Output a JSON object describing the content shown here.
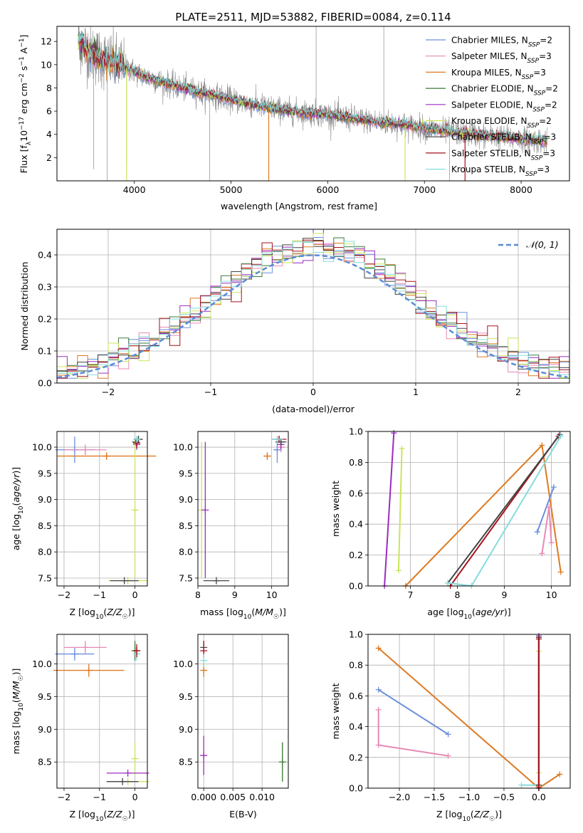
{
  "figure_title": "PLATE=2511, MJD=53882, FIBERID=0084, z=0.114",
  "colors": {
    "Chabrier MILES": "#6a8fdc",
    "Salpeter MILES": "#e889b6",
    "Kroupa MILES": "#dd7a22",
    "Chabrier ELODIE": "#3a7a3a",
    "Salpeter ELODIE": "#9b2cbf",
    "Kroupa ELODIE": "#c8e65a",
    "Chabrier STELIB": "#444444",
    "Salpeter STELIB": "#a6121e",
    "Kroupa STELIB": "#86dcdc",
    "data": "#888888",
    "normal": "#5b8bd6"
  },
  "legend_main": [
    {
      "base": "Chabrier MILES, N",
      "sub": "SSP",
      "tail": "=2",
      "series": "Chabrier MILES"
    },
    {
      "base": "Salpeter MILES, N",
      "sub": "SSP",
      "tail": "=3",
      "series": "Salpeter MILES"
    },
    {
      "base": "Kroupa MILES, N",
      "sub": "SSP",
      "tail": "=3",
      "series": "Kroupa MILES"
    },
    {
      "base": "Chabrier ELODIE, N",
      "sub": "SSP",
      "tail": "=2",
      "series": "Chabrier ELODIE"
    },
    {
      "base": "Salpeter ELODIE, N",
      "sub": "SSP",
      "tail": "=2",
      "series": "Salpeter ELODIE"
    },
    {
      "base": "Kroupa ELODIE, N",
      "sub": "SSP",
      "tail": "=2",
      "series": "Kroupa ELODIE"
    },
    {
      "base": "Chabrier STELIB, N",
      "sub": "SSP",
      "tail": "=3",
      "series": "Chabrier STELIB"
    },
    {
      "base": "Salpeter STELIB, N",
      "sub": "SSP",
      "tail": "=3",
      "series": "Salpeter STELIB"
    },
    {
      "base": "Kroupa STELIB, N",
      "sub": "SSP",
      "tail": "=3",
      "series": "Kroupa STELIB"
    }
  ],
  "chart_data": [
    {
      "id": "spectrum",
      "type": "line",
      "xlabel": "wavelength [Angstrom, rest frame]",
      "ylabel": "Flux [f_λ 10^-17 erg cm^-2 s^-1 A^-1]",
      "xlim": [
        3200,
        8500
      ],
      "ylim": [
        0,
        13.3
      ],
      "xticks": [
        4000,
        5000,
        6000,
        7000,
        8000
      ],
      "yticks": [
        2,
        4,
        6,
        8,
        10,
        12
      ],
      "continuum": {
        "x": [
          3400,
          3550,
          3700,
          3900,
          4100,
          4400,
          4800,
          5200,
          5600,
          6000,
          6400,
          6800,
          7200,
          7600,
          8000,
          8300
        ],
        "y": [
          12.2,
          11.0,
          10.4,
          9.8,
          9.0,
          8.2,
          7.4,
          6.6,
          6.0,
          5.7,
          5.2,
          4.8,
          4.3,
          3.9,
          3.6,
          3.4
        ]
      },
      "data_spikes": [
        {
          "x": 3580,
          "y": 1.0
        },
        {
          "x": 3720,
          "y": 0.0
        },
        {
          "x": 3920,
          "y": 1.5
        },
        {
          "x": 4780,
          "y": 0.0
        },
        {
          "x": 5880,
          "y": 13.3
        },
        {
          "x": 6580,
          "y": 13.3
        },
        {
          "x": 6800,
          "y": 1.8
        },
        {
          "x": 7260,
          "y": 0.0
        }
      ],
      "model_spikes": [
        {
          "series": "Kroupa MILES",
          "x": 5390,
          "y": 0.0
        },
        {
          "series": "Kroupa ELODIE",
          "x": 3920,
          "y": 0.0
        },
        {
          "series": "Salpeter STELIB",
          "x": 7420,
          "y": 0.0
        },
        {
          "series": "Kroupa ELODIE",
          "x": 6800,
          "y": 0.0
        }
      ]
    },
    {
      "id": "residuals",
      "type": "step",
      "xlabel": "(data-model)/error",
      "ylabel": "Normed distribution",
      "xlim": [
        -2.5,
        2.5
      ],
      "ylim": [
        0,
        0.48
      ],
      "xticks": [
        -2,
        -1,
        0,
        1,
        2
      ],
      "yticks": [
        0.0,
        0.1,
        0.2,
        0.3,
        0.4
      ],
      "bin_width": 0.1,
      "normal_curve_label": "𝒩(0, 1)"
    },
    {
      "id": "age_vs_Z",
      "type": "errorbar",
      "xlabel": "Z [log10(Z/Z☉)]",
      "ylabel": "age [log10(age/yr)]",
      "xlim": [
        -2.2,
        0.35
      ],
      "ylim": [
        7.35,
        10.3
      ],
      "xticks": [
        -2,
        -1,
        0
      ],
      "yticks": [
        7.5,
        8.0,
        8.5,
        9.0,
        9.5,
        10.0
      ],
      "points": [
        {
          "series": "Chabrier MILES",
          "x": -1.7,
          "xerr": 0.55,
          "y": 9.95,
          "yerr": 0.25
        },
        {
          "series": "Salpeter MILES",
          "x": -1.4,
          "xerr": 0.6,
          "y": 9.95,
          "yerr": 0.1
        },
        {
          "series": "Kroupa MILES",
          "x": -0.8,
          "xerr": 1.4,
          "y": 9.83,
          "yerr": 0.07
        },
        {
          "series": "Chabrier ELODIE",
          "x": 0.02,
          "xerr": 0.02,
          "y": 10.1,
          "yerr": 0.05
        },
        {
          "series": "Salpeter ELODIE",
          "x": 0.05,
          "xerr": 0.05,
          "y": 10.05,
          "yerr": 0.1
        },
        {
          "series": "Kroupa ELODIE",
          "x": 0.0,
          "xerr": 0.02,
          "y": 8.8,
          "yerr": 1.3
        },
        {
          "series": "Chabrier STELIB",
          "x": 0.1,
          "xerr": 0.12,
          "y": 10.15,
          "yerr": 0.05
        },
        {
          "series": "Salpeter STELIB",
          "x": 0.05,
          "xerr": 0.1,
          "y": 10.08,
          "yerr": 0.1
        },
        {
          "series": "Kroupa STELIB",
          "x": 0.05,
          "xerr": 0.1,
          "y": 10.15,
          "yerr": 0.05
        },
        {
          "series": "Kroupa ELODIE",
          "x": -0.2,
          "xerr": 0.55,
          "y": 7.45,
          "yerr": 0.0
        },
        {
          "series": "Chabrier STELIB",
          "x": -0.3,
          "xerr": 0.4,
          "y": 7.45,
          "yerr": 0.0
        }
      ]
    },
    {
      "id": "age_vs_mass",
      "type": "errorbar",
      "xlabel": "mass [log10(M/M☉)]",
      "ylabel": "",
      "xlim": [
        8.0,
        10.45
      ],
      "ylim": [
        7.35,
        10.3
      ],
      "xticks": [
        8,
        9,
        10
      ],
      "yticks": [
        7.5,
        8.0,
        8.5,
        9.0,
        9.5,
        10.0
      ],
      "points": [
        {
          "series": "Chabrier MILES",
          "x": 10.15,
          "xerr": 0.1,
          "y": 9.95,
          "yerr": 0.25
        },
        {
          "series": "Kroupa MILES",
          "x": 9.88,
          "xerr": 0.1,
          "y": 9.83,
          "yerr": 0.07
        },
        {
          "series": "Salpeter MILES",
          "x": 10.25,
          "xerr": 0.1,
          "y": 10.0,
          "yerr": 0.1
        },
        {
          "series": "Salpeter ELODIE",
          "x": 10.25,
          "xerr": 0.05,
          "y": 10.05,
          "yerr": 0.1
        },
        {
          "series": "Salpeter STELIB",
          "x": 10.2,
          "xerr": 0.2,
          "y": 10.15,
          "yerr": 0.05
        },
        {
          "series": "Chabrier STELIB",
          "x": 10.25,
          "xerr": 0.15,
          "y": 10.1,
          "yerr": 0.05
        },
        {
          "series": "Kroupa STELIB",
          "x": 10.15,
          "xerr": 0.15,
          "y": 10.15,
          "yerr": 0.05
        },
        {
          "series": "Kroupa ELODIE",
          "x": 8.1,
          "xerr": 0.0,
          "y": 8.8,
          "yerr": 1.3
        },
        {
          "series": "Salpeter ELODIE",
          "x": 8.2,
          "xerr": 0.0,
          "y": 8.8,
          "yerr": 1.3
        },
        {
          "series": "Chabrier STELIB",
          "x": 8.5,
          "xerr": 0.35,
          "y": 7.45,
          "yerr": 0.0
        }
      ]
    },
    {
      "id": "mass_weight_vs_age",
      "type": "line",
      "xlabel": "age [log10(age/yr)]",
      "ylabel": "mass weight",
      "xlim": [
        6.1,
        10.4
      ],
      "ylim": [
        0,
        1
      ],
      "xticks": [
        7,
        8,
        9,
        10
      ],
      "yticks": [
        0.0,
        0.2,
        0.4,
        0.6,
        0.8,
        1.0
      ],
      "series": [
        {
          "name": "Salpeter ELODIE",
          "x": [
            6.45,
            6.65
          ],
          "y": [
            0.0,
            0.99
          ]
        },
        {
          "name": "Kroupa ELODIE",
          "x": [
            6.75,
            6.82
          ],
          "y": [
            0.1,
            0.89
          ]
        },
        {
          "name": "Kroupa MILES",
          "x": [
            6.9,
            9.8,
            10.2
          ],
          "y": [
            0.0,
            0.91,
            0.09
          ]
        },
        {
          "name": "Salpeter STELIB",
          "x": [
            7.85,
            10.15
          ],
          "y": [
            0.0,
            0.97
          ]
        },
        {
          "name": "Chabrier STELIB",
          "x": [
            7.8,
            10.18
          ],
          "y": [
            0.02,
            0.98
          ]
        },
        {
          "name": "Kroupa STELIB",
          "x": [
            7.8,
            8.3,
            10.2
          ],
          "y": [
            0.02,
            0.0,
            0.97
          ]
        },
        {
          "name": "Chabrier MILES",
          "x": [
            9.7,
            10.05
          ],
          "y": [
            0.35,
            0.64
          ]
        },
        {
          "name": "Salpeter MILES",
          "x": [
            9.8,
            9.95,
            10.0
          ],
          "y": [
            0.21,
            0.51,
            0.28
          ]
        }
      ]
    },
    {
      "id": "mass_vs_Z",
      "type": "errorbar",
      "xlabel": "Z [log10(Z/Z☉)]",
      "ylabel": "mass [log10(M/M☉)]",
      "xlim": [
        -2.2,
        0.35
      ],
      "ylim": [
        8.1,
        10.45
      ],
      "xticks": [
        -2,
        -1,
        0
      ],
      "yticks": [
        8.5,
        9.0,
        9.5,
        10.0
      ],
      "points": [
        {
          "series": "Chabrier MILES",
          "x": -1.7,
          "xerr": 0.55,
          "y": 10.15,
          "yerr": 0.1
        },
        {
          "series": "Salpeter MILES",
          "x": -1.4,
          "xerr": 0.6,
          "y": 10.25,
          "yerr": 0.1
        },
        {
          "series": "Kroupa MILES",
          "x": -1.3,
          "xerr": 1.0,
          "y": 9.9,
          "yerr": 0.1
        },
        {
          "series": "Chabrier ELODIE",
          "x": 0.0,
          "xerr": 0.02,
          "y": 10.2,
          "yerr": 0.15
        },
        {
          "series": "Kroupa STELIB",
          "x": 0.05,
          "xerr": 0.1,
          "y": 10.15,
          "yerr": 0.1
        },
        {
          "series": "Salpeter STELIB",
          "x": 0.05,
          "xerr": 0.1,
          "y": 10.2,
          "yerr": 0.1
        },
        {
          "series": "Kroupa ELODIE",
          "x": 0.0,
          "xerr": 0.0,
          "y": 8.55,
          "yerr": 0.25
        },
        {
          "series": "Salpeter ELODIE",
          "x": -0.2,
          "xerr": 0.6,
          "y": 8.33,
          "yerr": 0.0
        },
        {
          "series": "Kroupa ELODIE",
          "x": -0.2,
          "xerr": 0.6,
          "y": 8.2,
          "yerr": 0.0
        },
        {
          "series": "Chabrier STELIB",
          "x": -0.35,
          "xerr": 0.45,
          "y": 8.2,
          "yerr": 0.0
        }
      ]
    },
    {
      "id": "mass_vs_EBV",
      "type": "errorbar",
      "xlabel": "E(B-V)",
      "ylabel": "",
      "xlim": [
        -0.001,
        0.0145
      ],
      "ylim": [
        8.1,
        10.45
      ],
      "xticks": [
        0.0,
        0.005,
        0.01
      ],
      "xticklabels": [
        "0.000",
        "0.005",
        "0.010"
      ],
      "yticks": [
        8.5,
        9.0,
        9.5,
        10.0
      ],
      "points": [
        {
          "series": "Chabrier STELIB",
          "x": 0.0,
          "xerr": 0.0,
          "y": 10.25,
          "yerr": 0.1
        },
        {
          "series": "Salpeter STELIB",
          "x": 0.0,
          "xerr": 0.0,
          "y": 10.2,
          "yerr": 0.15
        },
        {
          "series": "Kroupa MILES",
          "x": 0.0,
          "xerr": 0.0,
          "y": 9.9,
          "yerr": 0.1
        },
        {
          "series": "Kroupa STELIB",
          "x": 0.0,
          "xerr": 0.0,
          "y": 10.05,
          "yerr": 0.1
        },
        {
          "series": "Salpeter ELODIE",
          "x": 0.0,
          "xerr": 0.0,
          "y": 8.6,
          "yerr": 0.3
        },
        {
          "series": "Kroupa ELODIE",
          "x": 0.0135,
          "xerr": 0.0,
          "y": 8.5,
          "yerr": 0.3
        },
        {
          "series": "Chabrier ELODIE",
          "x": 0.0135,
          "xerr": 0.0,
          "y": 8.5,
          "yerr": 0.3
        }
      ]
    },
    {
      "id": "mass_weight_vs_Z",
      "type": "line",
      "xlabel": "Z [log10(Z/Z☉)]",
      "ylabel": "mass weight",
      "xlim": [
        -2.45,
        0.45
      ],
      "ylim": [
        0,
        1
      ],
      "xticks": [
        -2.0,
        -1.5,
        -1.0,
        -0.5,
        0.0
      ],
      "xticklabels": [
        "−2.0",
        "−1.5",
        "−1.0",
        "−0.5",
        "0.0"
      ],
      "yticks": [
        0.0,
        0.2,
        0.4,
        0.6,
        0.8,
        1.0
      ],
      "series": [
        {
          "name": "Kroupa MILES",
          "x": [
            -2.3,
            0.0,
            0.3
          ],
          "y": [
            0.91,
            0.0,
            0.09
          ]
        },
        {
          "name": "Chabrier MILES",
          "x": [
            -2.3,
            -1.3
          ],
          "y": [
            0.64,
            0.35
          ]
        },
        {
          "name": "Salpeter MILES",
          "x": [
            -2.3,
            -2.3,
            -1.3
          ],
          "y": [
            0.51,
            0.28,
            0.21
          ]
        },
        {
          "name": "Kroupa STELIB",
          "x": [
            -0.25,
            0.0,
            0.0
          ],
          "y": [
            0.02,
            0.02,
            0.97
          ]
        },
        {
          "name": "Kroupa ELODIE",
          "x": [
            0.0,
            0.0
          ],
          "y": [
            0.1,
            0.89
          ]
        },
        {
          "name": "Salpeter ELODIE",
          "x": [
            0.0,
            0.0
          ],
          "y": [
            0.0,
            0.99
          ]
        },
        {
          "name": "Chabrier STELIB",
          "x": [
            0.0,
            0.0
          ],
          "y": [
            0.02,
            0.98
          ]
        },
        {
          "name": "Salpeter STELIB",
          "x": [
            0.0,
            0.0
          ],
          "y": [
            0.0,
            0.97
          ]
        }
      ]
    }
  ]
}
